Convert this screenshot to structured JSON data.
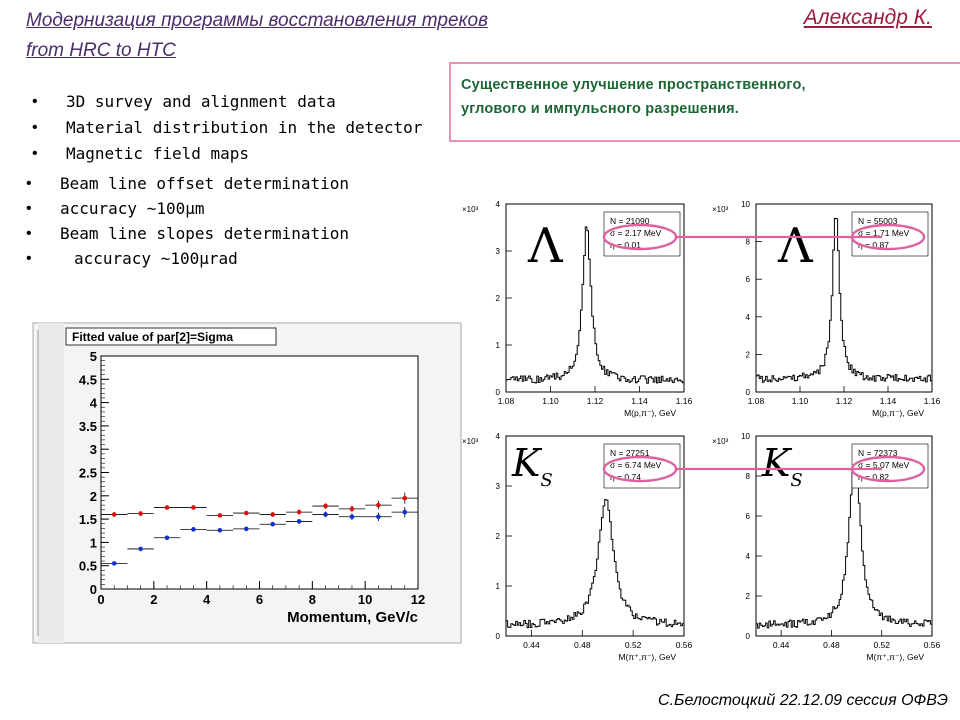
{
  "header": {
    "title_line1": "Модернизация программы восстановления треков",
    "title_line2": "from HRC  to HTC",
    "author": "Александр К."
  },
  "bullets_top": [
    "3D survey and alignment data",
    "Material distribution in the detector",
    "Magnetic field maps"
  ],
  "bullets_beam": [
    "Beam line offset determination",
    "accuracy ~100μm",
    "Beam line slopes determination"
  ],
  "bullets_beam_cont": "accuracy ~100μrad",
  "callout": {
    "line1": "Существенное улучшение пространственного,",
    "line2": "углового и импульсного разрешения."
  },
  "footer": "С.Белостоцкий  22.12.09 сессия ОФВЭ",
  "colors": {
    "red_points": "#e01010",
    "blue_points": "#1030d0",
    "ellipse": "#e060a0",
    "callout_text": "#1c6633"
  },
  "chart_data": [
    {
      "type": "scatter",
      "title": "Fitted value of par[2]=Sigma",
      "xlabel": "Momentum, GeV/c",
      "ylabel": "",
      "xlim": [
        0,
        12
      ],
      "ylim": [
        0,
        5
      ],
      "xticks": [
        "0",
        "2",
        "4",
        "6",
        "8",
        "10",
        "12"
      ],
      "yticks": [
        "0",
        "0.5",
        "1",
        "1.5",
        "2",
        "2.5",
        "3",
        "3.5",
        "4",
        "4.5",
        "5"
      ],
      "series": [
        {
          "color": "#e01010",
          "x": [
            0.5,
            1.5,
            2.5,
            3.5,
            4.5,
            5.5,
            6.5,
            7.5,
            8.5,
            9.5,
            10.5,
            11.5
          ],
          "y": [
            1.6,
            1.62,
            1.75,
            1.75,
            1.58,
            1.63,
            1.6,
            1.65,
            1.78,
            1.72,
            1.8,
            1.95
          ],
          "err": [
            0.05,
            0.05,
            0.04,
            0.04,
            0.04,
            0.04,
            0.05,
            0.05,
            0.06,
            0.07,
            0.09,
            0.12
          ]
        },
        {
          "color": "#1030d0",
          "x": [
            0.5,
            1.5,
            2.5,
            3.5,
            4.5,
            5.5,
            6.5,
            7.5,
            8.5,
            9.5,
            10.5,
            11.5
          ],
          "y": [
            0.55,
            0.86,
            1.1,
            1.28,
            1.26,
            1.29,
            1.39,
            1.45,
            1.6,
            1.55,
            1.55,
            1.65
          ],
          "err": [
            0.04,
            0.04,
            0.03,
            0.03,
            0.03,
            0.03,
            0.04,
            0.05,
            0.06,
            0.07,
            0.09,
            0.11
          ]
        }
      ]
    },
    {
      "type": "line",
      "xlabel": "M(p,π⁻), GeV",
      "xlim": [
        1.08,
        1.16
      ],
      "xticks": [
        "1.08",
        "1.10",
        "1.12",
        "1.14",
        "1.16"
      ],
      "ylim": [
        0,
        4
      ],
      "yticks": [
        "0",
        "1",
        "2",
        "3",
        "4"
      ],
      "yexp": "×10³",
      "particle": "Λ",
      "stats": [
        "N = 21090",
        "σ = 2.17 MeV",
        "η = 0.01"
      ],
      "peak": 1.116,
      "peak_y": 3.55,
      "base": 0.25,
      "width": 0.0022
    },
    {
      "type": "line",
      "xlabel": "M(p,π⁻), GeV",
      "xlim": [
        1.08,
        1.16
      ],
      "xticks": [
        "1.08",
        "1.10",
        "1.12",
        "1.14",
        "1.16"
      ],
      "ylim": [
        0,
        10
      ],
      "yticks": [
        "0",
        "2",
        "4",
        "6",
        "8",
        "10"
      ],
      "yexp": "×10³",
      "particle": "Λ",
      "stats": [
        "N = 55003",
        "σ = 1.71 MeV",
        "η = 0.87"
      ],
      "peak": 1.116,
      "peak_y": 9.8,
      "base": 0.7,
      "width": 0.0018
    },
    {
      "type": "line",
      "xlabel": "M(π⁺,π⁻), GeV",
      "xlim": [
        0.42,
        0.56
      ],
      "xticks": [
        "0.44",
        "0.48",
        "0.52",
        "0.56"
      ],
      "ylim": [
        0,
        4
      ],
      "yticks": [
        "0",
        "1",
        "2",
        "3",
        "4"
      ],
      "yexp": "×10³",
      "particle": "K_S",
      "stats": [
        "N = 27251",
        "σ = 6.74 MeV",
        "η = 0.74"
      ],
      "peak": 0.498,
      "peak_y": 2.8,
      "base": 0.22,
      "width": 0.0068
    },
    {
      "type": "line",
      "xlabel": "M(π⁺,π⁻), GeV",
      "xlim": [
        0.42,
        0.56
      ],
      "xticks": [
        "0.44",
        "0.48",
        "0.52",
        "0.56"
      ],
      "ylim": [
        0,
        10
      ],
      "yticks": [
        "0",
        "2",
        "4",
        "6",
        "8",
        "10"
      ],
      "yexp": "×10³",
      "particle": "K_S",
      "stats": [
        "N = 72373",
        "σ = 5.07 MeV",
        "η = 0.82"
      ],
      "peak": 0.498,
      "peak_y": 9.3,
      "base": 0.55,
      "width": 0.0052
    }
  ]
}
